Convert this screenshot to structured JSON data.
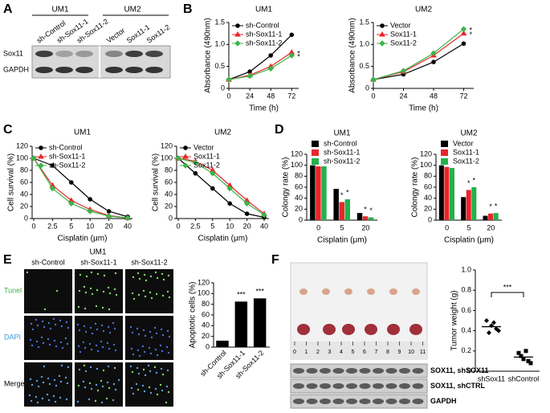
{
  "panel_labels": [
    "A",
    "B",
    "C",
    "D",
    "E",
    "F"
  ],
  "western_blot": {
    "groups": [
      "UM1",
      "UM2"
    ],
    "lanes": [
      "sh-Control",
      "sh-Sox11-1",
      "sh-Sox11-2",
      "Vector",
      "Sox11-1",
      "Sox11-2"
    ],
    "rows": [
      "Sox11",
      "GAPDH"
    ]
  },
  "tunel_images": {
    "title": "UM1",
    "columns": [
      "sh-Control",
      "sh-Sox11-1",
      "sh-Sox11-2"
    ],
    "rows": [
      "Tunel",
      "DAPI",
      "Merge"
    ]
  },
  "tumors": {
    "ruler": [
      0,
      1,
      2,
      3,
      4,
      5,
      6,
      7,
      8,
      9,
      10,
      11
    ],
    "blot_rows": [
      "SOX11, shSOX11",
      "SOX11, shCTRL",
      "GAPDH"
    ]
  },
  "chart_data": [
    {
      "type": "line",
      "title": "UM1",
      "x": [
        0,
        24,
        48,
        72
      ],
      "xlim": [
        0,
        80
      ],
      "xticks": [
        0,
        24,
        48,
        72
      ],
      "ylim": [
        0,
        1.5
      ],
      "yticks": [
        0,
        0.5,
        {
          "value": 1,
          "label": "1.0"
        },
        1.5
      ],
      "xlabel": "Time (h)",
      "ylabel": "Absorbance (490nm)",
      "legend": "upper left",
      "series": [
        {
          "name": "sh-Control",
          "color": "#000000",
          "values": [
            0.2,
            0.38,
            0.75,
            1.22
          ]
        },
        {
          "name": "sh-Sox11-1",
          "color": "#e8262a",
          "values": [
            0.2,
            0.3,
            0.5,
            0.82
          ]
        },
        {
          "name": "sh-Sox11-2",
          "color": "#3cb54a",
          "values": [
            0.2,
            0.28,
            0.45,
            0.75
          ]
        }
      ],
      "annotations": [
        "*",
        "*"
      ]
    },
    {
      "type": "line",
      "title": "UM2",
      "x": [
        0,
        24,
        48,
        72
      ],
      "xlim": [
        0,
        80
      ],
      "xticks": [
        0,
        24,
        48,
        72
      ],
      "ylim": [
        0,
        1.5
      ],
      "yticks": [
        0,
        0.5,
        {
          "value": 1,
          "label": "1.0"
        },
        1.5
      ],
      "xlabel": "Time (h)",
      "ylabel": "Absorbance (490nm)",
      "legend": "upper left",
      "series": [
        {
          "name": "Vector",
          "color": "#000000",
          "values": [
            0.2,
            0.32,
            0.6,
            1.02
          ]
        },
        {
          "name": "Sox11-1",
          "color": "#e8262a",
          "values": [
            0.2,
            0.38,
            0.75,
            1.25
          ]
        },
        {
          "name": "Sox11-2",
          "color": "#3cb54a",
          "values": [
            0.2,
            0.4,
            0.8,
            1.35
          ]
        }
      ],
      "annotations": [
        "*",
        "*"
      ]
    },
    {
      "type": "line",
      "title": "UM1",
      "categories": [
        "0",
        "2.5",
        "5",
        "10",
        "20",
        "40"
      ],
      "ylim": [
        0,
        120
      ],
      "yticks": [
        0,
        20,
        40,
        60,
        80,
        100,
        120
      ],
      "xlabel": "Cisplatin (μm)",
      "ylabel": "Cell survival (%)",
      "legend": "upper left",
      "series": [
        {
          "name": "sh-Control",
          "color": "#000000",
          "values": [
            100,
            88,
            60,
            32,
            12,
            3
          ]
        },
        {
          "name": "sh-Sox11-1",
          "color": "#e8262a",
          "values": [
            100,
            55,
            30,
            15,
            5,
            1
          ]
        },
        {
          "name": "sh-Sox11-2",
          "color": "#3cb54a",
          "values": [
            100,
            50,
            25,
            12,
            4,
            1
          ]
        }
      ]
    },
    {
      "type": "line",
      "title": "UM2",
      "categories": [
        "0",
        "2.5",
        "5",
        "10",
        "20",
        "40"
      ],
      "ylim": [
        0,
        120
      ],
      "yticks": [
        0,
        20,
        40,
        60,
        80,
        100,
        120
      ],
      "xlabel": "Cisplatin (μm)",
      "ylabel": "Cell survival (%)",
      "legend": "upper left",
      "series": [
        {
          "name": "Vector",
          "color": "#000000",
          "values": [
            100,
            75,
            50,
            25,
            8,
            2
          ]
        },
        {
          "name": "Sox11-1",
          "color": "#e8262a",
          "values": [
            100,
            95,
            80,
            55,
            30,
            8
          ]
        },
        {
          "name": "Sox11-2",
          "color": "#3cb54a",
          "values": [
            100,
            93,
            75,
            50,
            25,
            6
          ]
        }
      ]
    },
    {
      "type": "bar",
      "title": "UM1",
      "categories": [
        "0",
        "5",
        "20"
      ],
      "ylim": [
        0,
        120
      ],
      "yticks": [
        0,
        20,
        40,
        60,
        80,
        100,
        120
      ],
      "xlabel": "Cisplatin (μm)",
      "ylabel": "Colongy rate (%)",
      "legend": "upper left",
      "series": [
        {
          "name": "sh-Control",
          "color": "#000000",
          "values": [
            100,
            57,
            13
          ]
        },
        {
          "name": "sh-Sox11-1",
          "color": "#e8262a",
          "values": [
            98,
            33,
            7
          ]
        },
        {
          "name": "sh-Sox11-2",
          "color": "#22b14c",
          "values": [
            98,
            38,
            5
          ]
        }
      ],
      "annotations": [
        "*",
        "*",
        "*",
        "*"
      ]
    },
    {
      "type": "bar",
      "title": "UM2",
      "categories": [
        "0",
        "5",
        "20"
      ],
      "ylim": [
        0,
        120
      ],
      "yticks": [
        0,
        20,
        40,
        60,
        80,
        100,
        120
      ],
      "xlabel": "Cisplatin (μm)",
      "ylabel": "Colongy rate (%)",
      "legend": "upper left",
      "series": [
        {
          "name": "Vector",
          "color": "#000000",
          "values": [
            100,
            42,
            8
          ]
        },
        {
          "name": "Sox11-1",
          "color": "#e8262a",
          "values": [
            97,
            55,
            12
          ]
        },
        {
          "name": "Sox11-2",
          "color": "#22b14c",
          "values": [
            95,
            60,
            13
          ]
        }
      ],
      "annotations": [
        "*",
        "*",
        "*",
        "*"
      ]
    },
    {
      "type": "bar",
      "categories": [
        "sh-Control",
        "sh-Sox11-1",
        "sh-Sox11-2"
      ],
      "values": [
        12,
        85,
        91
      ],
      "color": "#000000",
      "ylim": [
        0,
        120
      ],
      "yticks": [
        0,
        20,
        40,
        60,
        80,
        100,
        120
      ],
      "ylabel": "Apoptotic cells (%)",
      "annotations": [
        "***",
        "***"
      ]
    },
    {
      "type": "dot",
      "categories": [
        "shSox11",
        "shControl"
      ],
      "groups": [
        [
          0.5,
          0.45,
          0.42,
          0.38,
          0.48,
          0.4
        ],
        [
          0.18,
          0.12,
          0.1,
          0.15,
          0.2,
          0.08
        ]
      ],
      "means": [
        0.44,
        0.14
      ],
      "ylim": [
        0,
        1
      ],
      "yticks": [
        0,
        0.2,
        0.4,
        0.6,
        0.8,
        {
          "value": 1,
          "label": "1.0"
        }
      ],
      "ylabel": "Tumor weight (g)",
      "annotations": [
        "***"
      ]
    }
  ]
}
